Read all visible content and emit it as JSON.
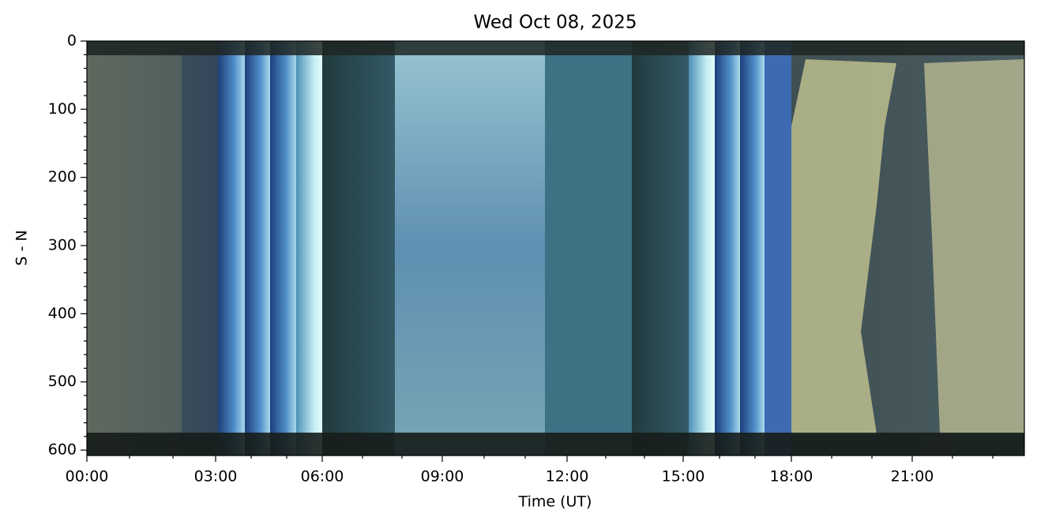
{
  "chart_data": {
    "type": "image",
    "title": "Wed Oct 08, 2025",
    "x_label": "Time (UT)",
    "y_label": "S - N",
    "xlim": [
      0,
      1187
    ],
    "xticks": [
      {
        "value": 0,
        "label": "00:00"
      },
      {
        "value": 163,
        "label": "03:00"
      },
      {
        "value": 298,
        "label": "06:00"
      },
      {
        "value": 450,
        "label": "09:00"
      },
      {
        "value": 608,
        "label": "12:00"
      },
      {
        "value": 755,
        "label": "15:00"
      },
      {
        "value": 892,
        "label": "18:00"
      },
      {
        "value": 1045,
        "label": "21:00"
      }
    ],
    "xminorticks": [
      54,
      109,
      208,
      253,
      349,
      399,
      503,
      555,
      657,
      706,
      801,
      846,
      943,
      994,
      1096,
      1147
    ],
    "ylim": [
      608,
      0
    ],
    "yticks": [
      0,
      100,
      200,
      300,
      400,
      500,
      600
    ],
    "yminorticks": [
      20,
      40,
      60,
      80,
      120,
      140,
      160,
      180,
      220,
      240,
      260,
      280,
      320,
      340,
      360,
      380,
      420,
      440,
      460,
      480,
      520,
      540,
      560,
      580
    ]
  }
}
